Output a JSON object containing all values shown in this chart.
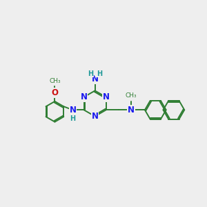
{
  "bg": "#eeeeee",
  "bc": "#2e7d32",
  "nc": "#1a1aee",
  "oc": "#cc1111",
  "hc": "#229999",
  "lw": 1.4,
  "afs": 8.5,
  "hfs": 7.0,
  "figsize": [
    3.0,
    3.0
  ],
  "dpi": 100,
  "xlim": [
    -1.0,
    11.0
  ],
  "ylim": [
    1.5,
    8.5
  ]
}
